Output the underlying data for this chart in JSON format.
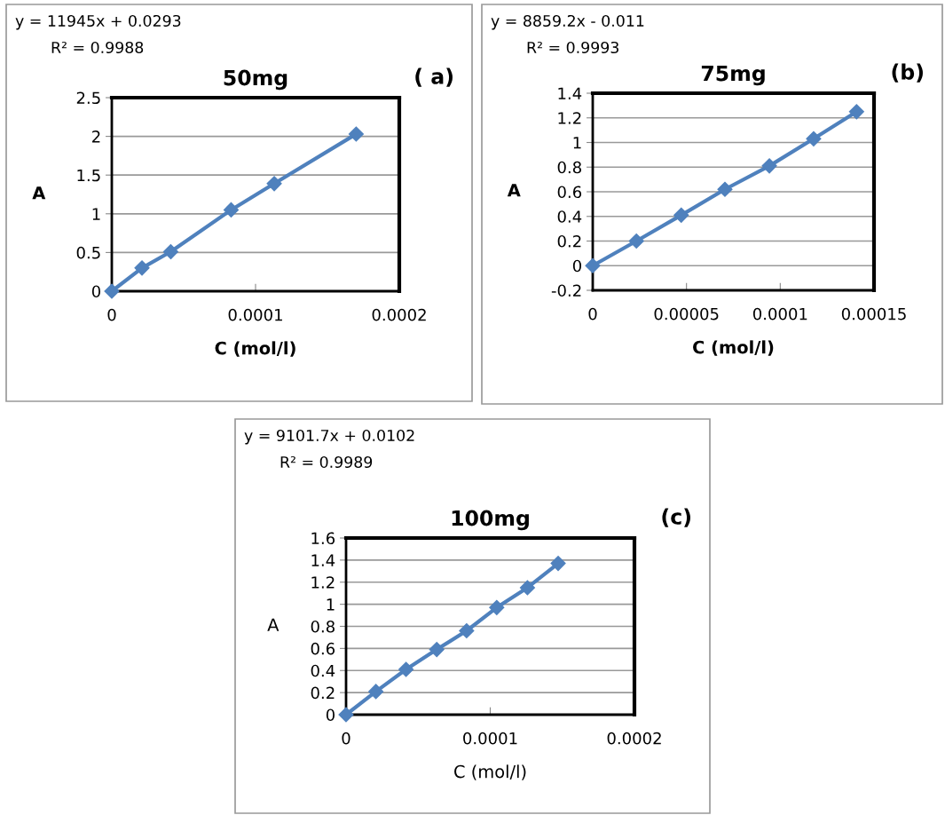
{
  "chart_data": [
    {
      "type": "line",
      "title": "50mg",
      "xlabel": "C (mol/l)",
      "ylabel": "A",
      "annotations": [
        "y = 11945x + 0.0293",
        "R² = 0.9988",
        "( a)"
      ],
      "x": [
        0,
        2.1e-05,
        4.1e-05,
        8.3e-05,
        0.000113,
        0.00017
      ],
      "series": [
        {
          "color": "#4f81bd",
          "values": [
            0,
            0.3,
            0.51,
            1.05,
            1.39,
            2.03
          ]
        }
      ],
      "xlim": [
        0,
        0.0002
      ],
      "xticks": [
        0,
        0.0001,
        0.0002
      ],
      "ylim": [
        0,
        2.5
      ],
      "yticks": [
        0,
        0.5,
        1,
        1.5,
        2,
        2.5
      ],
      "grid": "y",
      "marker": "diamond",
      "line_style": "solid"
    },
    {
      "type": "line",
      "title": "75mg",
      "xlabel": "C (mol/l)",
      "ylabel": "A",
      "annotations": [
        "y = 8859.2x - 0.011",
        "R² = 0.9993",
        "(b)"
      ],
      "x": [
        0,
        2.33e-05,
        4.72e-05,
        7.05e-05,
        9.42e-05,
        0.0001178,
        0.0001407
      ],
      "series": [
        {
          "color": "#4f81bd",
          "values": [
            0,
            0.2,
            0.41,
            0.62,
            0.81,
            1.03,
            1.25
          ]
        }
      ],
      "xlim": [
        0,
        0.00015
      ],
      "xticks": [
        0,
        {
          "value": 5e-05,
          "label": "0.00005"
        },
        0.0001,
        0.00015
      ],
      "ylim": [
        -0.2,
        1.4
      ],
      "yticks": [
        {
          "value": -0.2,
          "label": "-0.2"
        },
        0,
        0.2,
        0.4,
        0.6,
        0.8,
        1,
        1.2,
        1.4
      ],
      "grid": "y",
      "marker": "diamond",
      "line_style": "solid"
    },
    {
      "type": "line",
      "title": "100mg",
      "xlabel": "C (mol/l)",
      "ylabel": "A",
      "annotations": [
        "y = 9101.7x + 0.0102",
        "R² = 0.9989",
        "(c)"
      ],
      "x": [
        0,
        2.07e-05,
        4.16e-05,
        6.29e-05,
        8.36e-05,
        0.0001045,
        0.0001258,
        0.0001471
      ],
      "series": [
        {
          "color": "#4f81bd",
          "values": [
            0,
            0.21,
            0.41,
            0.59,
            0.76,
            0.97,
            1.15,
            1.37
          ]
        }
      ],
      "xlim": [
        0,
        0.0002
      ],
      "xticks": [
        0,
        0.0001,
        0.0002
      ],
      "ylim": [
        0,
        1.6
      ],
      "yticks": [
        0,
        0.2,
        0.4,
        0.6,
        0.8,
        1,
        1.2,
        1.4,
        1.6
      ],
      "grid": "y",
      "marker": "diamond",
      "line_style": "solid"
    }
  ]
}
